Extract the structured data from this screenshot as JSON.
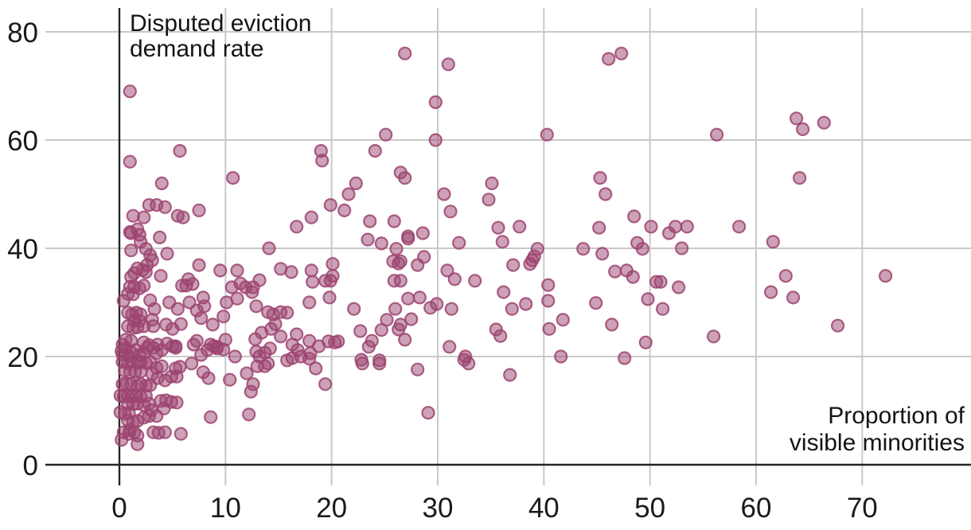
{
  "chart_data": {
    "type": "scatter",
    "title": "Disputed eviction demand rate",
    "ylabel_lines": [
      "Disputed eviction",
      "demand rate"
    ],
    "xlabel_lines": [
      "Proportion of",
      "visible minorities"
    ],
    "xlabel": "Proportion of visible minorities",
    "ylabel": "Disputed eviction demand rate",
    "x_ticks": [
      0,
      10,
      20,
      30,
      40,
      50,
      60,
      70
    ],
    "y_ticks": [
      0,
      20,
      40,
      60,
      80
    ],
    "xlim": [
      0,
      80.3
    ],
    "ylim": [
      0,
      84.4
    ],
    "grid": true,
    "legend_position": "none",
    "colors": {
      "point": "#9c4470",
      "grid": "#c9c9c9",
      "axis": "#262626",
      "text": "#1a1a1a"
    },
    "point_radius": 7.5,
    "points": [
      [
        1,
        69
      ],
      [
        5.7,
        58
      ],
      [
        1,
        56
      ],
      [
        10.7,
        53
      ],
      [
        19,
        58
      ],
      [
        19.1,
        56.2
      ],
      [
        25.1,
        61
      ],
      [
        24.1,
        58
      ],
      [
        4,
        52
      ],
      [
        22.3,
        52
      ],
      [
        21.6,
        50
      ],
      [
        19.9,
        48
      ],
      [
        21.2,
        47
      ],
      [
        18.1,
        45.7
      ],
      [
        16.7,
        44
      ],
      [
        2.8,
        48
      ],
      [
        3.5,
        48
      ],
      [
        4.3,
        47.6
      ],
      [
        7.5,
        47
      ],
      [
        1.3,
        46
      ],
      [
        2.3,
        45.7
      ],
      [
        5.5,
        46
      ],
      [
        6,
        45.7
      ],
      [
        1.1,
        42.8
      ],
      [
        1.9,
        42.5
      ],
      [
        3.8,
        42
      ],
      [
        1.7,
        43.5
      ],
      [
        1,
        43
      ],
      [
        26.9,
        76
      ],
      [
        31,
        74
      ],
      [
        29.8,
        67
      ],
      [
        29.8,
        60
      ],
      [
        40.3,
        61
      ],
      [
        46.1,
        75
      ],
      [
        47.3,
        76
      ],
      [
        26.5,
        54
      ],
      [
        26.9,
        53
      ],
      [
        35.1,
        52
      ],
      [
        30.6,
        50
      ],
      [
        34.8,
        49
      ],
      [
        45.3,
        53
      ],
      [
        45.8,
        50
      ],
      [
        31.2,
        46.8
      ],
      [
        23.6,
        45
      ],
      [
        25.9,
        45
      ],
      [
        35.7,
        43.8
      ],
      [
        37.7,
        44
      ],
      [
        48.5,
        45.9
      ],
      [
        45.2,
        43.8
      ],
      [
        50.1,
        44
      ],
      [
        27.2,
        42.2
      ],
      [
        28.6,
        42.8
      ],
      [
        56.3,
        61
      ],
      [
        63.8,
        64
      ],
      [
        64.4,
        62
      ],
      [
        66.4,
        63.2
      ],
      [
        64.1,
        53
      ],
      [
        51.8,
        42.8
      ],
      [
        52.4,
        44
      ],
      [
        53.5,
        44
      ],
      [
        58.4,
        44
      ],
      [
        53,
        40
      ],
      [
        1.1,
        39.6
      ],
      [
        2,
        41.2
      ],
      [
        2.5,
        39.9
      ],
      [
        2.9,
        38.7
      ],
      [
        3.1,
        37.8
      ],
      [
        2.6,
        36.9
      ],
      [
        2.2,
        36
      ],
      [
        1.7,
        36.3
      ],
      [
        1.4,
        35.4
      ],
      [
        1.1,
        34.7
      ],
      [
        2.5,
        35.6
      ],
      [
        4.5,
        39
      ],
      [
        3.9,
        34.9
      ],
      [
        7.5,
        36.9
      ],
      [
        14.1,
        40
      ],
      [
        9.5,
        35.9
      ],
      [
        11.1,
        35.9
      ],
      [
        6.5,
        34.3
      ],
      [
        5.9,
        33.1
      ],
      [
        6.3,
        33.1
      ],
      [
        6.9,
        33.4
      ],
      [
        1,
        32.9
      ],
      [
        1.4,
        32.9
      ],
      [
        1.9,
        32.6
      ],
      [
        2.3,
        33.1
      ],
      [
        0.8,
        31.6
      ],
      [
        1.3,
        31.5
      ],
      [
        10.6,
        32.8
      ],
      [
        11.4,
        33.5
      ],
      [
        11.9,
        32.8
      ],
      [
        12.5,
        31.9
      ],
      [
        12.6,
        32.8
      ],
      [
        11.1,
        30.7
      ],
      [
        13.2,
        34.1
      ],
      [
        15.2,
        36.2
      ],
      [
        16.2,
        35.6
      ],
      [
        0.4,
        30.3
      ],
      [
        2.9,
        30.4
      ],
      [
        3.3,
        28.8
      ],
      [
        4.7,
        30
      ],
      [
        5.5,
        28.8
      ],
      [
        6.6,
        30
      ],
      [
        7.3,
        28.5
      ],
      [
        7.9,
        30.9
      ],
      [
        8,
        29.3
      ],
      [
        10.1,
        30
      ],
      [
        7.7,
        27.1
      ],
      [
        0.8,
        28.1
      ],
      [
        1.2,
        27.8
      ],
      [
        1.6,
        28.1
      ],
      [
        2,
        27.8
      ],
      [
        1.4,
        26.6
      ],
      [
        1.9,
        26.6
      ],
      [
        0.8,
        25.6
      ],
      [
        1.3,
        25.3
      ],
      [
        1.7,
        25.4
      ],
      [
        2.3,
        25.6
      ],
      [
        3.1,
        26.8
      ],
      [
        3.2,
        25.6
      ],
      [
        4.4,
        25.9
      ],
      [
        5,
        25.1
      ],
      [
        5.8,
        26
      ],
      [
        8.8,
        25.9
      ],
      [
        9.8,
        27.4
      ],
      [
        10,
        23.1
      ],
      [
        12.9,
        29.3
      ],
      [
        14,
        28.2
      ],
      [
        14.5,
        27.8
      ],
      [
        14.7,
        26
      ],
      [
        14.3,
        25.1
      ],
      [
        15.2,
        28.2
      ],
      [
        15.8,
        28.1
      ],
      [
        15.2,
        23.7
      ],
      [
        16.7,
        24.1
      ],
      [
        0.6,
        23.1
      ],
      [
        1.1,
        22.9
      ],
      [
        0.3,
        22.2
      ],
      [
        2.3,
        22.6
      ],
      [
        2.8,
        22.1
      ],
      [
        3.6,
        22.2
      ],
      [
        4.5,
        22.4
      ],
      [
        5.3,
        21.9
      ],
      [
        7.3,
        22.9
      ],
      [
        8.6,
        22.2
      ],
      [
        9.2,
        21.8
      ],
      [
        12.8,
        23.2
      ],
      [
        13.4,
        24.4
      ],
      [
        0.2,
        21
      ],
      [
        0.6,
        21.5
      ],
      [
        0.3,
        20.4
      ],
      [
        0.8,
        20.1
      ],
      [
        1.1,
        20.7
      ],
      [
        1.5,
        21.2
      ],
      [
        1.9,
        20.3
      ],
      [
        2.3,
        20.7
      ],
      [
        2.6,
        21.6
      ],
      [
        3.2,
        21.6
      ],
      [
        3.5,
        20.6
      ],
      [
        4,
        21.2
      ],
      [
        5,
        21.9
      ],
      [
        5.3,
        21.6
      ],
      [
        7,
        22.2
      ],
      [
        7.7,
        20.3
      ],
      [
        8.3,
        21.2
      ],
      [
        8.9,
        21.9
      ],
      [
        9.2,
        21.5
      ],
      [
        9.8,
        21.3
      ],
      [
        10.9,
        20
      ],
      [
        12.9,
        20.9
      ],
      [
        13.2,
        20
      ],
      [
        13.7,
        20.7
      ],
      [
        14.2,
        21.5
      ],
      [
        15.8,
        19.3
      ],
      [
        16.3,
        22.2
      ],
      [
        16.8,
        21.2
      ],
      [
        14,
        18.7
      ],
      [
        13,
        18.2
      ],
      [
        13.7,
        18.2
      ],
      [
        16.3,
        19.7
      ],
      [
        17.1,
        20
      ],
      [
        0.3,
        19
      ],
      [
        0.8,
        18.7
      ],
      [
        1.2,
        19.1
      ],
      [
        1.7,
        18.8
      ],
      [
        2,
        19
      ],
      [
        2.5,
        18.8
      ],
      [
        2.9,
        19
      ],
      [
        3.5,
        17.9
      ],
      [
        4,
        18.2
      ],
      [
        5.3,
        17.8
      ],
      [
        5.7,
        18.1
      ],
      [
        6.8,
        18.7
      ],
      [
        0.5,
        17.4
      ],
      [
        1,
        17.1
      ],
      [
        1.5,
        17.2
      ],
      [
        2,
        17.2
      ],
      [
        3.1,
        16.8
      ],
      [
        3.6,
        16
      ],
      [
        4.3,
        15.6
      ],
      [
        4.9,
        16.3
      ],
      [
        5.4,
        16.3
      ],
      [
        7.9,
        17.1
      ],
      [
        8.4,
        16
      ],
      [
        10.4,
        15.7
      ],
      [
        12,
        16.9
      ],
      [
        12.6,
        14.9
      ],
      [
        12.4,
        13.5
      ],
      [
        0.3,
        14.9
      ],
      [
        0.7,
        15
      ],
      [
        1.1,
        14.9
      ],
      [
        1.7,
        14.6
      ],
      [
        2,
        14.9
      ],
      [
        2.5,
        14.6
      ],
      [
        2.9,
        14.7
      ],
      [
        0.1,
        12.8
      ],
      [
        0.4,
        12.6
      ],
      [
        0.8,
        12.7
      ],
      [
        1.2,
        12.6
      ],
      [
        1.6,
        12.8
      ],
      [
        2,
        12.6
      ],
      [
        2.5,
        12.7
      ],
      [
        0.8,
        11.3
      ],
      [
        1.3,
        11.2
      ],
      [
        1.7,
        11.3
      ],
      [
        2.3,
        11
      ],
      [
        2.8,
        11.3
      ],
      [
        3.9,
        11.8
      ],
      [
        4.4,
        11.9
      ],
      [
        4.9,
        11.6
      ],
      [
        5.4,
        11.5
      ],
      [
        4.2,
        10.4
      ],
      [
        3,
        10.1
      ],
      [
        0.1,
        9.7
      ],
      [
        0.5,
        9.4
      ],
      [
        0.9,
        9.6
      ],
      [
        2.8,
        9
      ],
      [
        2.3,
        8.7
      ],
      [
        3.5,
        9
      ],
      [
        0.8,
        8.2
      ],
      [
        1.3,
        7.9
      ],
      [
        1.7,
        8.1
      ],
      [
        8.6,
        8.8
      ],
      [
        12.2,
        9.3
      ],
      [
        0.2,
        4.6
      ],
      [
        0.4,
        6
      ],
      [
        0.9,
        5.7
      ],
      [
        1,
        6.5
      ],
      [
        1.4,
        6
      ],
      [
        1.7,
        5.4
      ],
      [
        3.2,
        6
      ],
      [
        3.7,
        5.9
      ],
      [
        4.3,
        6
      ],
      [
        5.8,
        5.7
      ],
      [
        1.7,
        3.8
      ],
      [
        23.4,
        41.6
      ],
      [
        24.7,
        40.9
      ],
      [
        26.1,
        39.9
      ],
      [
        27.2,
        41.8
      ],
      [
        32,
        41
      ],
      [
        36.1,
        41.2
      ],
      [
        39.4,
        39.9
      ],
      [
        39.1,
        38.5
      ],
      [
        38.9,
        37.8
      ],
      [
        38.7,
        37.1
      ],
      [
        37.1,
        36.9
      ],
      [
        25.8,
        37.6
      ],
      [
        26.3,
        37.2
      ],
      [
        26.5,
        37.6
      ],
      [
        28.7,
        38.4
      ],
      [
        28.1,
        36.9
      ],
      [
        30.9,
        35.9
      ],
      [
        31.6,
        34.3
      ],
      [
        33.5,
        34
      ],
      [
        25.9,
        34
      ],
      [
        26.5,
        34
      ],
      [
        18.1,
        35.9
      ],
      [
        20.1,
        37.1
      ],
      [
        18.2,
        33.8
      ],
      [
        19.4,
        34
      ],
      [
        19.9,
        34
      ],
      [
        20.1,
        34.9
      ],
      [
        17.9,
        30
      ],
      [
        19.8,
        30.9
      ],
      [
        27.2,
        30.7
      ],
      [
        28.3,
        30.9
      ],
      [
        29.9,
        29.7
      ],
      [
        29.3,
        29
      ],
      [
        31.3,
        28.8
      ],
      [
        36.2,
        31.9
      ],
      [
        37,
        28.8
      ],
      [
        38.3,
        29.7
      ],
      [
        40.4,
        30.3
      ],
      [
        40.4,
        33.2
      ],
      [
        22.1,
        28.8
      ],
      [
        26,
        28.8
      ],
      [
        25.2,
        26.8
      ],
      [
        26.5,
        25.9
      ],
      [
        27.5,
        26.9
      ],
      [
        22.7,
        24.7
      ],
      [
        24.7,
        24.9
      ],
      [
        26.3,
        25
      ],
      [
        26.9,
        23.1
      ],
      [
        35.5,
        25
      ],
      [
        35.9,
        23.8
      ],
      [
        40.5,
        25.1
      ],
      [
        17.9,
        22.9
      ],
      [
        18,
        20.6
      ],
      [
        18.8,
        21.9
      ],
      [
        19.7,
        22.8
      ],
      [
        20.3,
        22.6
      ],
      [
        20.6,
        22.8
      ],
      [
        23.5,
        21.8
      ],
      [
        23.8,
        22.9
      ],
      [
        31.1,
        21.8
      ],
      [
        32.6,
        20
      ],
      [
        22.8,
        19.4
      ],
      [
        24.5,
        19.3
      ],
      [
        17.9,
        19.6
      ],
      [
        18.5,
        17.8
      ],
      [
        19.4,
        14.9
      ],
      [
        22.9,
        18.7
      ],
      [
        24.5,
        18.7
      ],
      [
        28.1,
        17.6
      ],
      [
        29.1,
        9.6
      ],
      [
        32.5,
        19.4
      ],
      [
        32.9,
        18.7
      ],
      [
        36.8,
        16.6
      ],
      [
        48.8,
        41
      ],
      [
        49.3,
        39.9
      ],
      [
        43.7,
        39.9
      ],
      [
        45.5,
        39
      ],
      [
        46.7,
        35.7
      ],
      [
        47.8,
        35.9
      ],
      [
        48.4,
        34.7
      ],
      [
        50.6,
        33.8
      ],
      [
        51,
        33.8
      ],
      [
        52.7,
        32.8
      ],
      [
        44.9,
        29.9
      ],
      [
        49.8,
        30.6
      ],
      [
        51.2,
        28.8
      ],
      [
        41.8,
        26.8
      ],
      [
        46.4,
        25.9
      ],
      [
        49.6,
        22.6
      ],
      [
        56,
        23.7
      ],
      [
        61.6,
        41.2
      ],
      [
        62.8,
        34.9
      ],
      [
        61.4,
        31.9
      ],
      [
        63.5,
        30.9
      ],
      [
        41.6,
        20
      ],
      [
        47.6,
        19.7
      ],
      [
        67.7,
        25.7
      ],
      [
        72.2,
        34.9
      ]
    ]
  }
}
